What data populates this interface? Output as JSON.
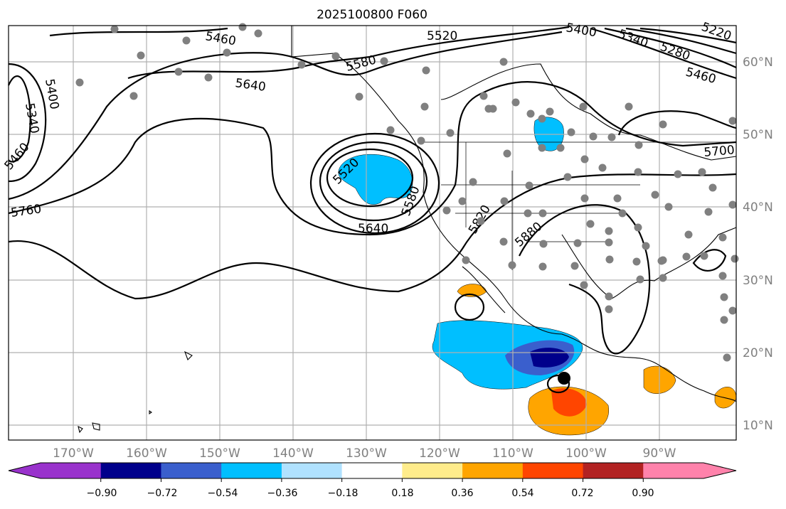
{
  "title": "2025100800 F060",
  "lon_labels": [
    "170°W",
    "160°W",
    "150°W",
    "140°W",
    "130°W",
    "120°W",
    "110°W",
    "100°W",
    "90°W"
  ],
  "lat_labels": [
    "60°N",
    "50°N",
    "40°N",
    "30°N",
    "20°N",
    "10°N"
  ],
  "contour_labels": [
    "5460",
    "5520",
    "5400",
    "5220",
    "5280",
    "5340",
    "5580",
    "5460",
    "5640",
    "5400",
    "5340",
    "5460",
    "5520",
    "5580",
    "5640",
    "5760",
    "5700",
    "5820",
    "5880"
  ],
  "colorbar": {
    "ticks": [
      "−0.90",
      "−0.72",
      "−0.54",
      "−0.36",
      "−0.18",
      "0.18",
      "0.36",
      "0.54",
      "0.72",
      "0.90"
    ],
    "colors": [
      "#9932cc",
      "#00008b",
      "#3a5fcd",
      "#00bfff",
      "#b0e2ff",
      "#ffffff",
      "#ffec8b",
      "#ffa500",
      "#ff4500",
      "#b22222",
      "#ff82ab"
    ],
    "extend": "both"
  }
}
